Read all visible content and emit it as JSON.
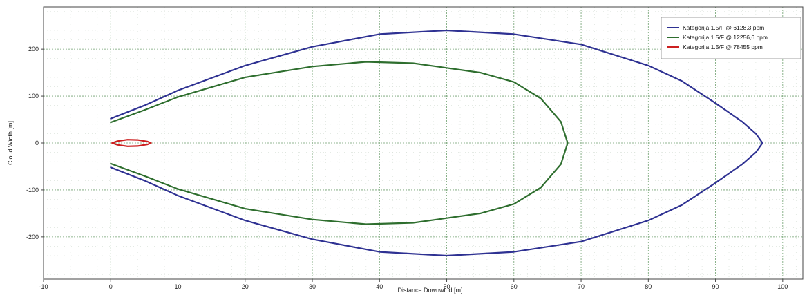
{
  "chart_data": {
    "type": "line",
    "xlabel": "Distance Downwind [m]",
    "ylabel": "Cloud Width [m]",
    "xlim": [
      -10,
      103
    ],
    "ylim": [
      -290,
      290
    ],
    "x_ticks": [
      "-10",
      "0",
      "10",
      "20",
      "30",
      "40",
      "50",
      "60",
      "70",
      "80",
      "90",
      "100"
    ],
    "y_ticks": [
      "200",
      "100",
      "0",
      "-100",
      "-200"
    ],
    "grid": true,
    "legend_position": "top-right",
    "series": [
      {
        "name": "Kategorija 1.5/F @ 6128,3 ppm",
        "color": "#2e3192",
        "points": [
          [
            0,
            52
          ],
          [
            5,
            80
          ],
          [
            10,
            112
          ],
          [
            20,
            165
          ],
          [
            30,
            205
          ],
          [
            40,
            232
          ],
          [
            50,
            240
          ],
          [
            60,
            232
          ],
          [
            70,
            210
          ],
          [
            80,
            165
          ],
          [
            85,
            132
          ],
          [
            90,
            85
          ],
          [
            94,
            45
          ],
          [
            96,
            20
          ],
          [
            97,
            0
          ],
          [
            96,
            -20
          ],
          [
            94,
            -45
          ],
          [
            90,
            -85
          ],
          [
            85,
            -132
          ],
          [
            80,
            -165
          ],
          [
            70,
            -210
          ],
          [
            60,
            -232
          ],
          [
            50,
            -240
          ],
          [
            40,
            -232
          ],
          [
            30,
            -205
          ],
          [
            20,
            -165
          ],
          [
            10,
            -112
          ],
          [
            5,
            -80
          ],
          [
            0,
            -52
          ]
        ]
      },
      {
        "name": "Kategorija 1.5/F @ 12256,6 ppm",
        "color": "#2e6e2e",
        "points": [
          [
            0,
            44
          ],
          [
            5,
            70
          ],
          [
            10,
            98
          ],
          [
            20,
            140
          ],
          [
            30,
            163
          ],
          [
            38,
            173
          ],
          [
            45,
            170
          ],
          [
            55,
            150
          ],
          [
            60,
            130
          ],
          [
            64,
            95
          ],
          [
            67,
            45
          ],
          [
            68,
            0
          ],
          [
            67,
            -45
          ],
          [
            64,
            -95
          ],
          [
            60,
            -130
          ],
          [
            55,
            -150
          ],
          [
            45,
            -170
          ],
          [
            38,
            -173
          ],
          [
            30,
            -163
          ],
          [
            20,
            -140
          ],
          [
            10,
            -98
          ],
          [
            5,
            -70
          ],
          [
            0,
            -44
          ]
        ]
      },
      {
        "name": "Kategorija 1.5/F @ 78455 ppm",
        "color": "#cc2020",
        "points": [
          [
            0.2,
            0
          ],
          [
            1,
            4
          ],
          [
            2.5,
            7
          ],
          [
            4,
            6.5
          ],
          [
            5.5,
            3
          ],
          [
            6,
            0
          ],
          [
            5.5,
            -3
          ],
          [
            4,
            -6.5
          ],
          [
            2.5,
            -7
          ],
          [
            1,
            -4
          ],
          [
            0.2,
            0
          ]
        ]
      }
    ]
  }
}
